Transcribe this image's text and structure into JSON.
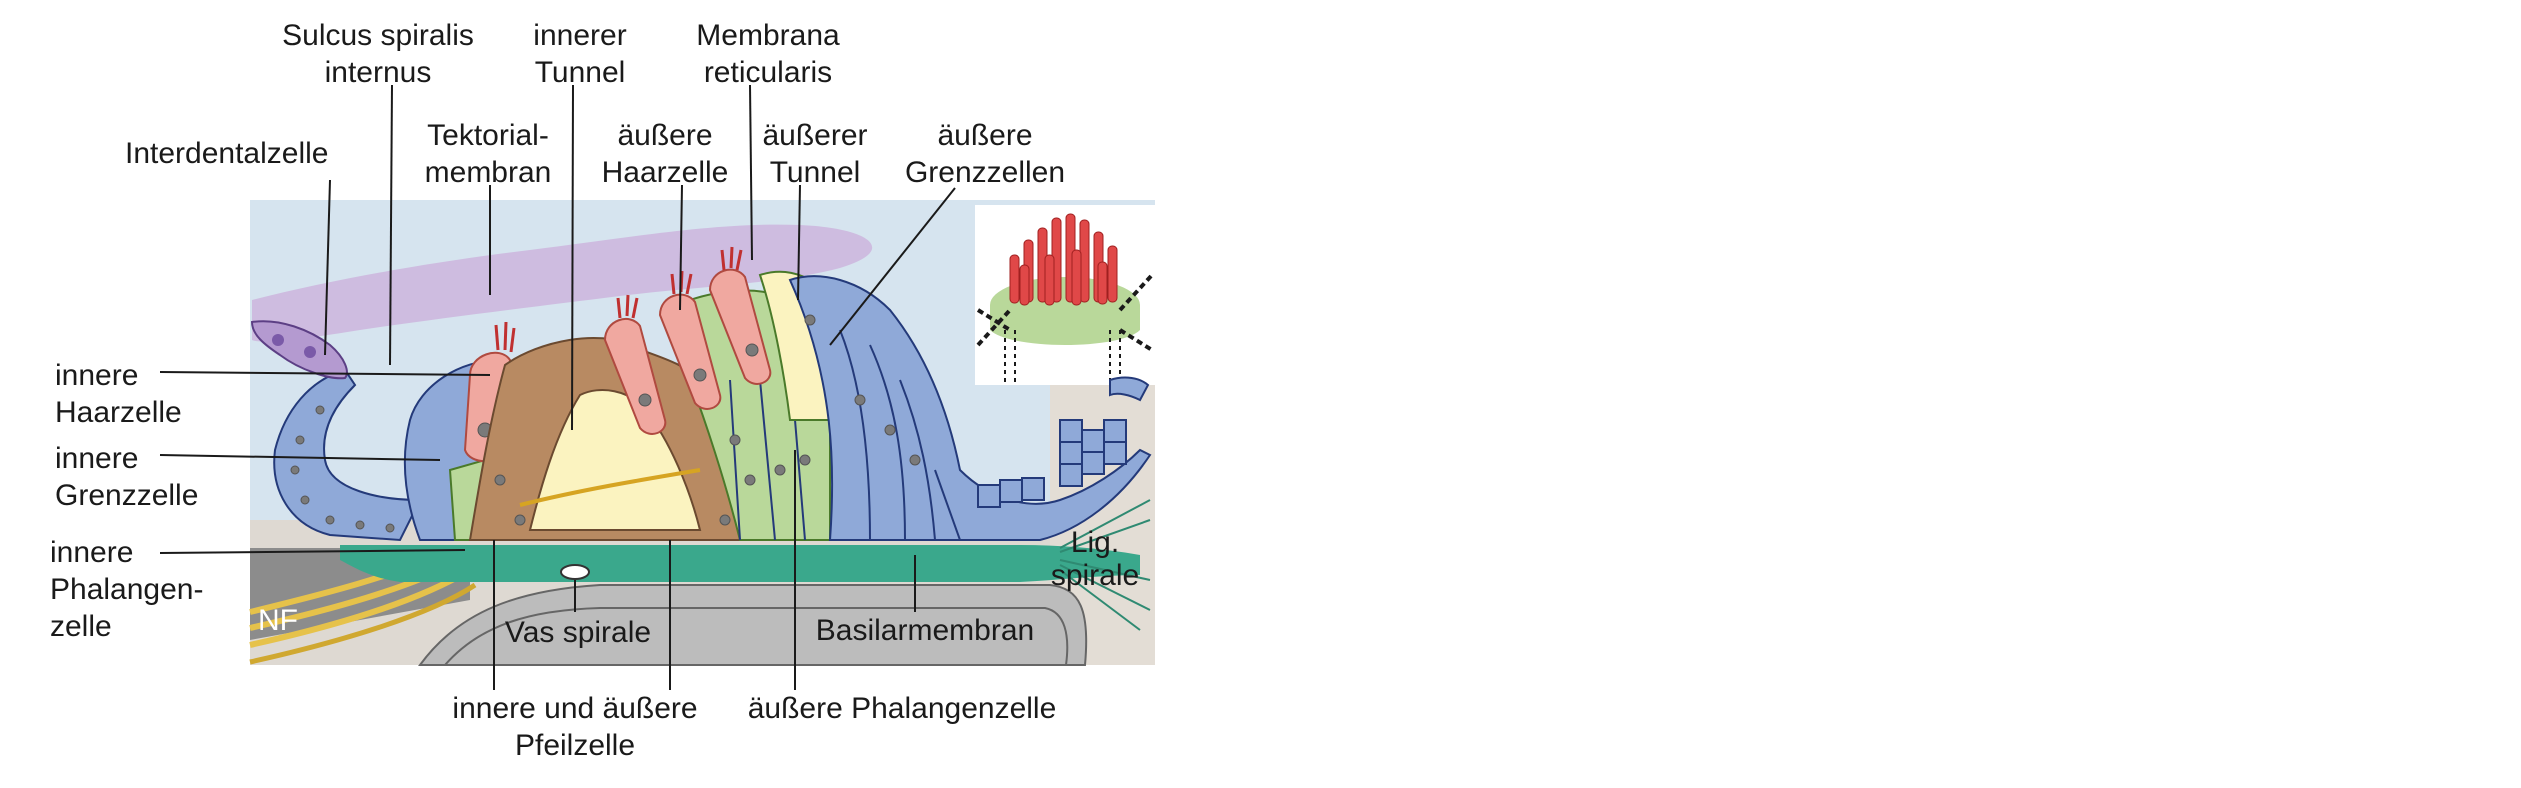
{
  "labels": {
    "sulcus_l1": "Sulcus spiralis",
    "sulcus_l2": "internus",
    "innerer_l1": "innerer",
    "innerer_l2": "Tunnel",
    "membrana_l1": "Membrana",
    "membrana_l2": "reticularis",
    "interdental": "Interdentalzelle",
    "tektorial_l1": "Tektorial-",
    "tektorial_l2": "membran",
    "aeussere_haar_l1": "äußere",
    "aeussere_haar_l2": "Haarzelle",
    "aeusserer_tunnel_l1": "äußerer",
    "aeusserer_tunnel_l2": "Tunnel",
    "grenzzellen_l1": "äußere",
    "grenzzellen_l2": "Grenzzellen",
    "innere_haar_l1": "innere",
    "innere_haar_l2": "Haarzelle",
    "innere_grenz_l1": "innere",
    "innere_grenz_l2": "Grenzzelle",
    "innere_phal_l1": "innere",
    "innere_phal_l2": "Phalangen-",
    "innere_phal_l3": "zelle",
    "nf": "NF",
    "vas_spirale": "Vas spirale",
    "basilarmembran": "Basilarmembran",
    "lig_l1": "Lig.",
    "lig_l2": "spirale",
    "pfeil_l1": "innere und äußere",
    "pfeil_l2": "Pfeilzelle",
    "aeussere_phal": "äußere Phalangenzelle"
  },
  "colors": {
    "tectorial": "#cdb9de",
    "background_blue": "#cfe0ee",
    "supporting_blue": "#8fa9d8",
    "hair_cell": "#f0a8a0",
    "pillar_brown": "#b88a62",
    "tunnel_yellow": "#fbf3c0",
    "phalangeal_green": "#b9d89a",
    "basilar_teal": "#3aa88c",
    "bone_gray": "#9a9a9a",
    "nerve_yellow": "#e6c24a"
  }
}
